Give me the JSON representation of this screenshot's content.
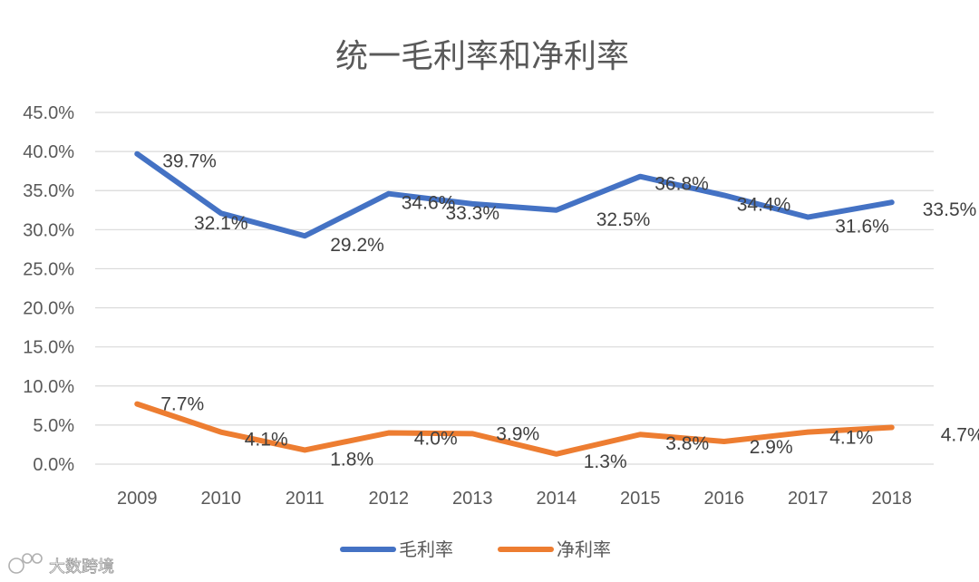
{
  "chart_data": {
    "type": "line",
    "title": "统一毛利率和净利率",
    "xlabel": "",
    "ylabel": "",
    "categories": [
      "2009",
      "2010",
      "2011",
      "2012",
      "2013",
      "2014",
      "2015",
      "2016",
      "2017",
      "2018"
    ],
    "ylim": [
      0,
      45
    ],
    "yticks": [
      "0.0%",
      "5.0%",
      "10.0%",
      "15.0%",
      "20.0%",
      "25.0%",
      "30.0%",
      "35.0%",
      "40.0%",
      "45.0%"
    ],
    "grid": true,
    "legend_position": "bottom",
    "series": [
      {
        "name": "毛利率",
        "color": "#4472C4",
        "values": [
          39.7,
          32.1,
          29.2,
          34.6,
          33.3,
          32.5,
          36.8,
          34.4,
          31.6,
          33.5
        ],
        "labels": [
          "39.7%",
          "32.1%",
          "29.2%",
          "34.6%",
          "33.3%",
          "32.5%",
          "36.8%",
          "34.4%",
          "31.6%",
          "33.5%"
        ]
      },
      {
        "name": "净利率",
        "color": "#ED7D31",
        "values": [
          7.7,
          4.1,
          1.8,
          4.0,
          3.9,
          1.3,
          3.8,
          2.9,
          4.1,
          4.7
        ],
        "labels": [
          "7.7%",
          "4.1%",
          "1.8%",
          "4.0%",
          "3.9%",
          "1.3%",
          "3.8%",
          "2.9%",
          "4.1%",
          "4.7%"
        ]
      }
    ]
  },
  "watermark": {
    "text": "大数跨境",
    "icon": "watermark-logo-icon"
  }
}
